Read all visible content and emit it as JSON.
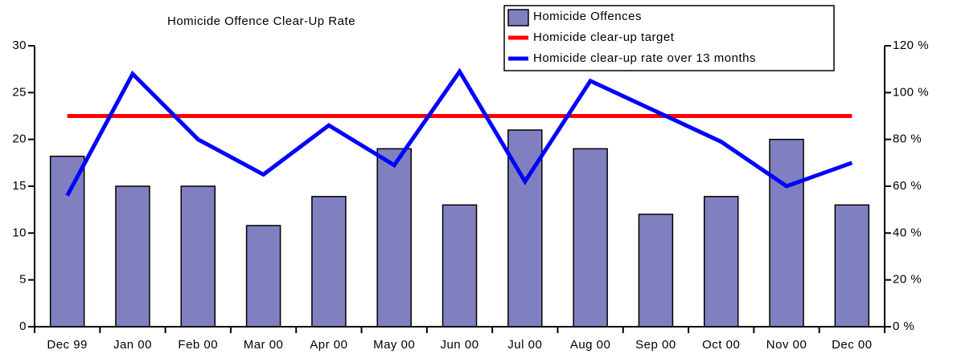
{
  "chart_data": {
    "type": "bar",
    "title": "Homicide Offence Clear-Up Rate",
    "categories": [
      "Dec 99",
      "Jan 00",
      "Feb 00",
      "Mar 00",
      "Apr 00",
      "May 00",
      "Jun 00",
      "Jul 00",
      "Aug 00",
      "Sep 00",
      "Oct 00",
      "Nov 00",
      "Dec 00"
    ],
    "series": [
      {
        "name": "Homicide Offences",
        "type": "bar",
        "color": "#8080c0",
        "values": [
          18.2,
          15,
          15,
          10.8,
          13.9,
          19,
          13,
          21,
          19,
          12,
          13.9,
          20,
          13
        ]
      },
      {
        "name": "Homicide clear-up target",
        "type": "line",
        "axis": "y2",
        "color": "#ff0000",
        "values": [
          90,
          90,
          90,
          90,
          90,
          90,
          90,
          90,
          90,
          90,
          90,
          90,
          90
        ]
      },
      {
        "name": "Homicide clear-up rate over 13 months",
        "type": "line",
        "axis": "y2",
        "color": "#0000ff",
        "values": [
          56,
          108,
          80,
          65,
          86,
          69,
          109,
          62,
          105,
          92,
          79,
          60,
          70
        ]
      }
    ],
    "ylim": [
      0,
      30
    ],
    "yticks": [
      0,
      5,
      10,
      15,
      20,
      25,
      30
    ],
    "y2lim": [
      0,
      120
    ],
    "y2ticks": [
      {
        "value": 0,
        "label": "0 %"
      },
      {
        "value": 20,
        "label": "20 %"
      },
      {
        "value": 40,
        "label": "40 %"
      },
      {
        "value": 60,
        "label": "60 %"
      },
      {
        "value": 80,
        "label": "80 %"
      },
      {
        "value": 100,
        "label": "100 %"
      },
      {
        "value": 120,
        "label": "120 %"
      }
    ],
    "legend": "top-right"
  }
}
